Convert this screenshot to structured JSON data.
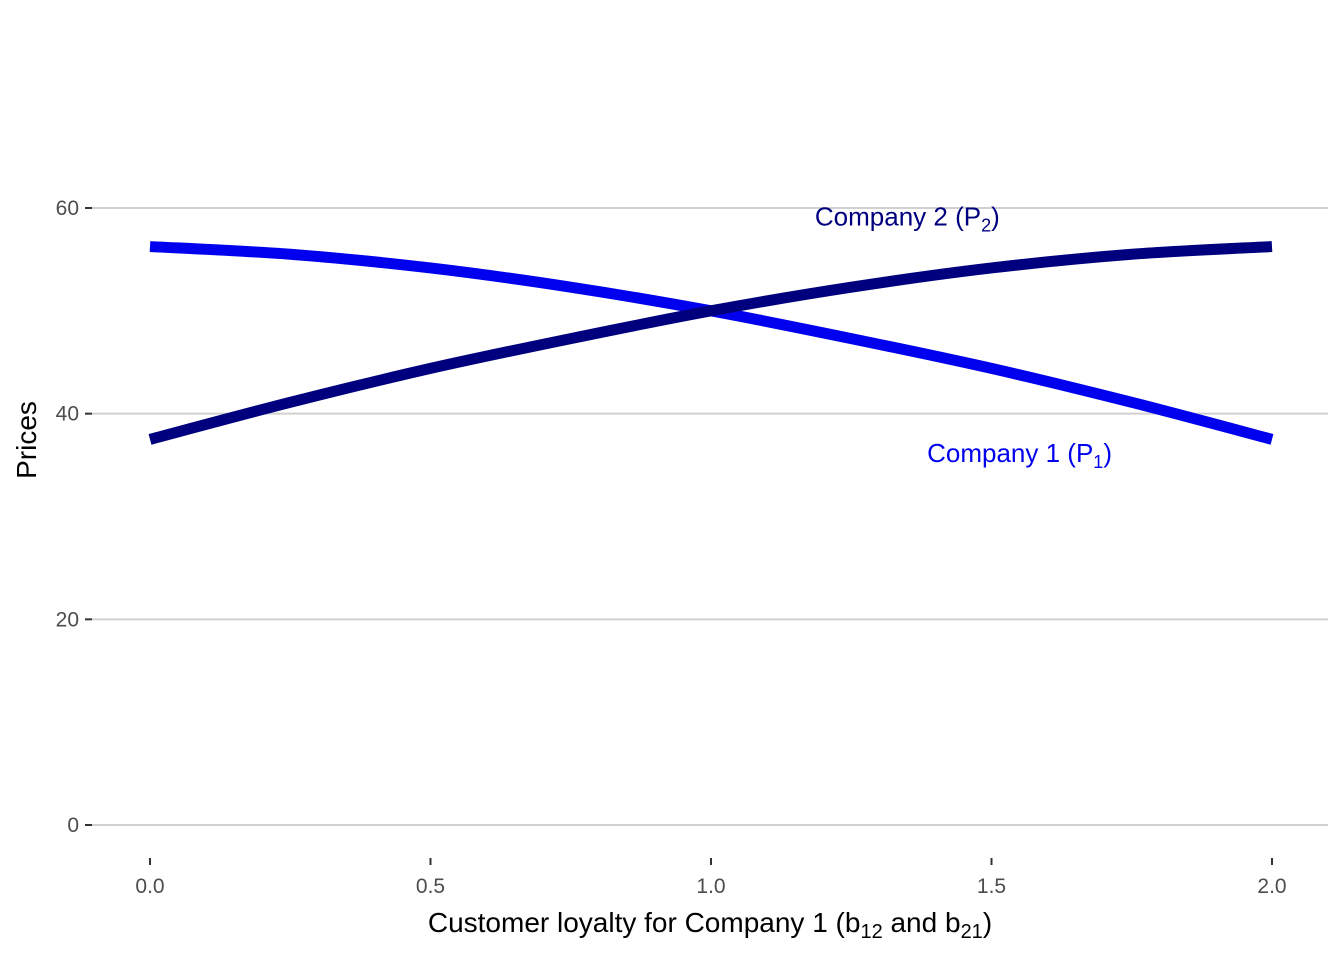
{
  "chart_data": {
    "type": "line",
    "title": "",
    "xlabel": {
      "text": "Customer loyalty for Company 1 (b",
      "sub1": "12",
      "mid": " and b",
      "sub2": "21",
      "end": ")"
    },
    "ylabel": "Prices",
    "xlim": [
      -0.1,
      2.1
    ],
    "ylim": [
      0,
      68
    ],
    "x_ticks": [
      0.0,
      0.5,
      1.0,
      1.5,
      2.0
    ],
    "x_tick_labels": [
      "0.0",
      "0.5",
      "1.0",
      "1.5",
      "2.0"
    ],
    "y_ticks": [
      0,
      20,
      40,
      60
    ],
    "y_tick_labels": [
      "0",
      "20",
      "40",
      "60"
    ],
    "grid": "horizontal major only",
    "legend": "none (direct labels)",
    "series": [
      {
        "name": "Company 1 (P1)",
        "label_main": "Company 1 (P",
        "label_sub": "1",
        "label_end": ")",
        "label_at": [
          1.55,
          35.3
        ],
        "color": "#0000ee",
        "x": [
          0.0,
          0.25,
          0.5,
          0.75,
          1.0,
          1.25,
          1.5,
          1.75,
          2.0
        ],
        "values": [
          56.25,
          55.5,
          54.17,
          52.3,
          50.0,
          47.3,
          44.4,
          41.1,
          37.5
        ]
      },
      {
        "name": "Company 2 (P2)",
        "label_main": "Company 2 (P",
        "label_sub": "2",
        "label_end": ")",
        "label_at": [
          1.35,
          58.3
        ],
        "color": "#00007f",
        "x": [
          0.0,
          0.25,
          0.5,
          0.75,
          1.0,
          1.25,
          1.5,
          1.75,
          2.0
        ],
        "values": [
          37.5,
          41.1,
          44.4,
          47.3,
          50.0,
          52.3,
          54.17,
          55.5,
          56.25
        ]
      }
    ]
  }
}
